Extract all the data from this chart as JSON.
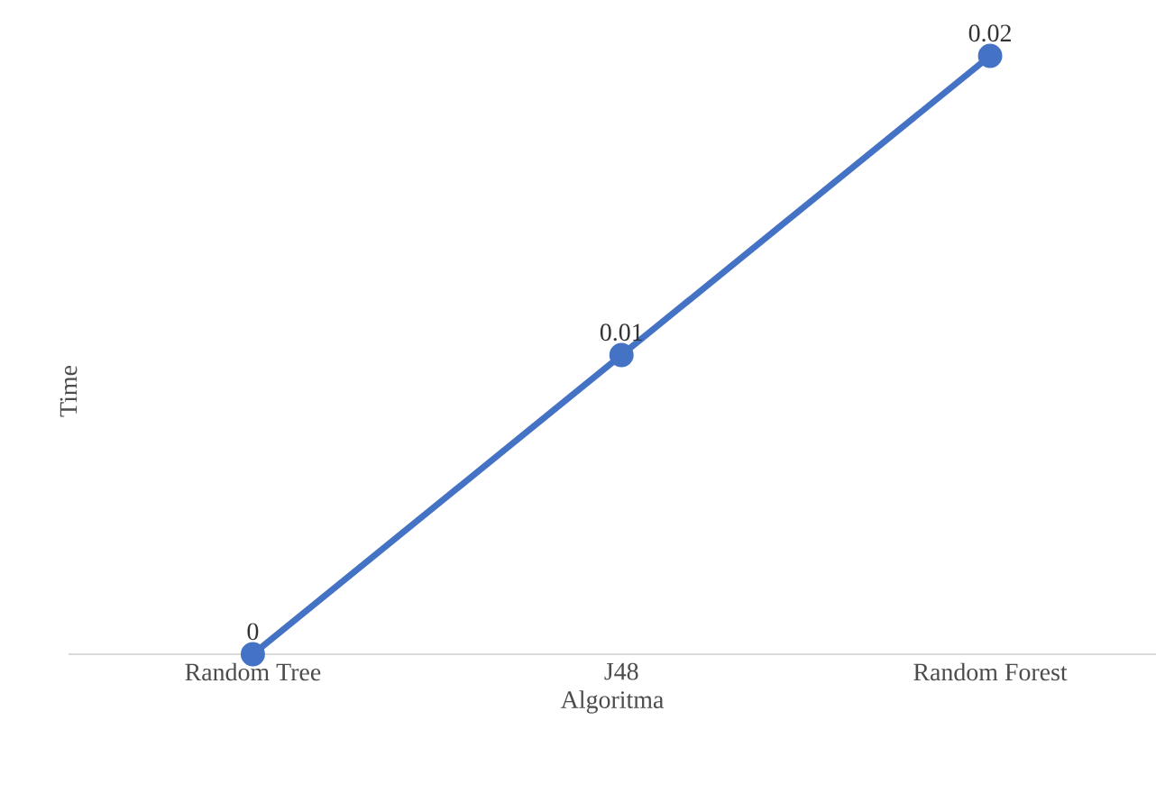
{
  "chart_data": {
    "type": "line",
    "data_labels": true,
    "xlabel": "Algoritma",
    "ylabel": "Time",
    "categories": [
      "Random Tree",
      "J48",
      "Random Forest"
    ],
    "series": [
      {
        "color": "#4472c4",
        "values": [
          0,
          0.01,
          0.02
        ]
      }
    ],
    "marker": "circle",
    "line_style": "solid"
  }
}
